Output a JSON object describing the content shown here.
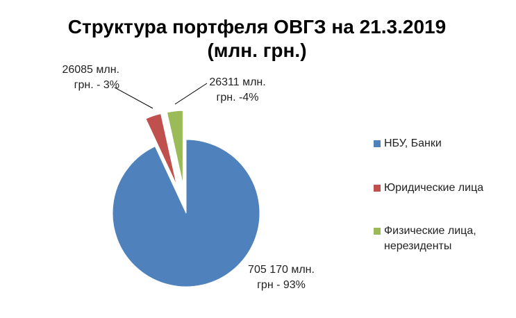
{
  "chart_data": {
    "type": "pie",
    "title": "Структура портфеля ОВГЗ на 21.3.2019 (млн. грн.)",
    "categories": [
      "НБУ, Банки",
      "Юридические лица",
      "Физические лица, нерезиденты"
    ],
    "values": [
      705170,
      26085,
      26311
    ],
    "value_labels": [
      "705 170 млн. грн - 93%",
      "26085 млн. грн. - 3%",
      "26311 млн. грн. -4%"
    ],
    "colors": [
      "#4f81bd",
      "#c0504d",
      "#9bbb59"
    ],
    "legend": "right"
  }
}
